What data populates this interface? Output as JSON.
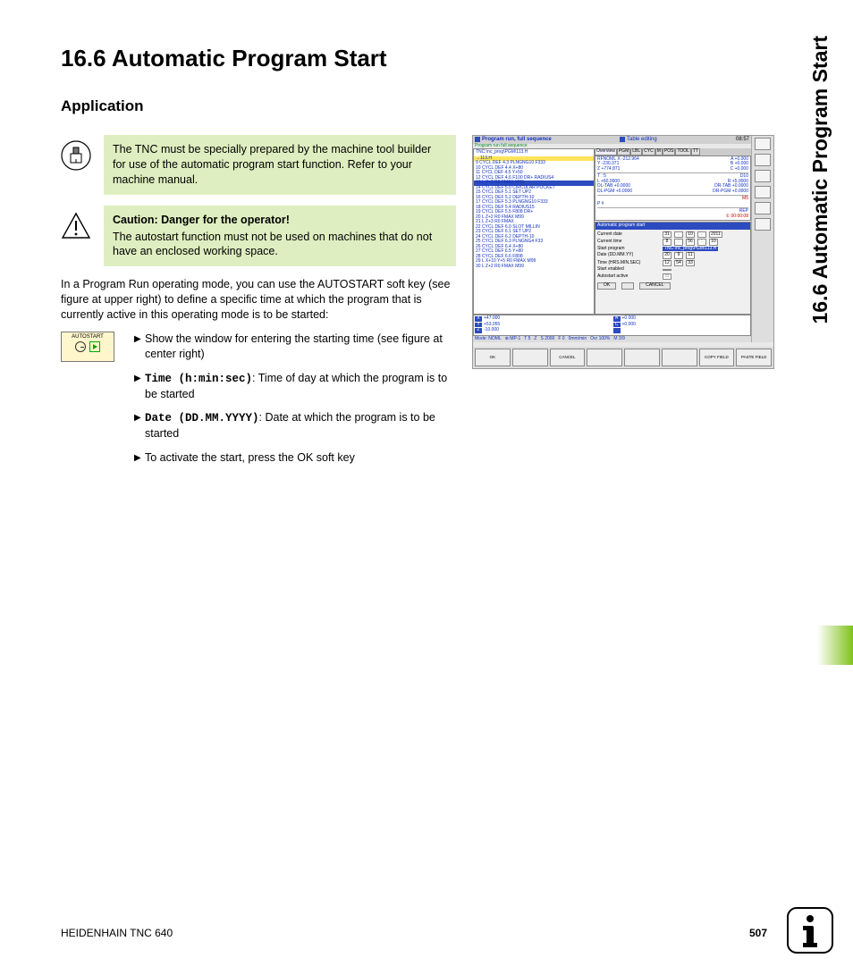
{
  "page": {
    "section_number": "16.6",
    "section_title": "16.6 Automatic Program Start",
    "subsection": "Application",
    "side_title": "16.6 Automatic Program Start",
    "footer_left": "HEIDENHAIN TNC 640",
    "footer_page": "507"
  },
  "notes": {
    "machine": "The TNC must be specially prepared by the machine tool builder for use of the automatic program start function. Refer to your machine manual.",
    "caution_title": "Caution: Danger for the operator!",
    "caution_body": "The autostart function must not be used on machines that do not have an enclosed working space."
  },
  "body": {
    "intro": "In a Program Run operating mode, you can use the AUTOSTART soft key (see figure at upper right) to define a specific time at which the program that is currently active in this operating mode is to be started:",
    "softkey_label": "AUTOSTART",
    "bullets": [
      {
        "pre": "",
        "bold": "",
        "text": "Show the window for entering the starting time (see figure at center right)"
      },
      {
        "pre": "",
        "bold": "Time (h:min:sec)",
        "text": ": Time of day at which the program is to be started"
      },
      {
        "pre": "",
        "bold": "Date (DD.MM.YYYY)",
        "text": ": Date at which the program is to be started"
      },
      {
        "pre": "",
        "bold": "",
        "text": "To activate the start, press the OK soft key"
      }
    ]
  },
  "screenshot": {
    "title_left": "Program run, full sequence",
    "subtitle_left": "Program run full sequence",
    "title_right": "Table editing",
    "clock": "08:57",
    "path": "TNC:\\nc_prog\\PGM\\113.H",
    "code_lines": [
      {
        "t": "→113.H",
        "cls": "hl"
      },
      {
        "t": "9  CYCL DEF 4.3 PLNGNG10 F333",
        "cls": ""
      },
      {
        "t": "10 CYCL DEF 4.4 X+80",
        "cls": ""
      },
      {
        "t": "11 CYCL DEF 4.5 Y+50",
        "cls": ""
      },
      {
        "t": "12 CYCL DEF 4.6 F100 DR+ RADIUS4",
        "cls": ""
      },
      {
        "t": "13 L Z+2 R0 FMAX M99",
        "cls": "sel"
      },
      {
        "t": "14 CYCL DEF 5.0 CIRCULAR POCKET",
        "cls": ""
      },
      {
        "t": "15 CYCL DEF 5.1 SET UP2",
        "cls": ""
      },
      {
        "t": "16 CYCL DEF 5.2 DEPTH-10",
        "cls": ""
      },
      {
        "t": "17 CYCL DEF 5.3 PLNGNG10 F333",
        "cls": ""
      },
      {
        "t": "18 CYCL DEF 5.4 RADIUS15",
        "cls": ""
      },
      {
        "t": "19 CYCL DEF 5.5 F808 DR+",
        "cls": ""
      },
      {
        "t": "20 L Z+2 R0 FMAX M99",
        "cls": ""
      },
      {
        "t": "21 L Z+3 R0 FMAX",
        "cls": ""
      },
      {
        "t": "22 CYCL DEF 6.0 SLOT MILLIN",
        "cls": ""
      },
      {
        "t": "23 CYCL DEF 6.1 SET UP2",
        "cls": ""
      },
      {
        "t": "24 CYCL DEF 6.2 DEPTH-10",
        "cls": ""
      },
      {
        "t": "25 CYCL DEF 6.3 PLNGNG4 F33",
        "cls": ""
      },
      {
        "t": "26 CYCL DEF 6.4 X+80",
        "cls": ""
      },
      {
        "t": "27 CYCL DEF 6.5 Y+80",
        "cls": ""
      },
      {
        "t": "28 CYCL DEF 6.6 F808",
        "cls": ""
      },
      {
        "t": "29 L X+10 Y+5 R0 FMAX M99",
        "cls": ""
      },
      {
        "t": "30 L Z+2 R0 FMAX M99",
        "cls": ""
      }
    ],
    "overview": {
      "tabs": [
        "Overview",
        "PGM",
        "LBL",
        "CYC",
        "M",
        "POS",
        "TOOL",
        "TT"
      ],
      "rows_left": [
        [
          "RFNOML",
          "X",
          "-212.964"
        ],
        [
          "",
          "Y",
          "-230.371"
        ],
        [
          "",
          "Z",
          "+774.871"
        ]
      ],
      "rows_right": [
        [
          "A",
          "+0.000"
        ],
        [
          "B",
          "+0.000"
        ],
        [
          "C",
          "+0.000"
        ]
      ],
      "tool": [
        "T : 5",
        "",
        "D10"
      ],
      "lr": [
        "L  +60.0000",
        "R  +5.0000"
      ],
      "dl": [
        "DL-TAB  +0.0000",
        "DR-TAB  +0.0000"
      ],
      "dp": [
        "DL-PGM  +0.0000",
        "DR-PGM  +0.0000"
      ],
      "m5_label": "M5",
      "p_labels": [
        "P #",
        ""
      ],
      "rep_label": "REP",
      "rep_time": "① 00:00:08"
    },
    "dialog": {
      "title": "Automatic program start",
      "rows": [
        {
          "label": "Current date",
          "fields": [
            "31",
            ".",
            "10",
            ".",
            "2011"
          ]
        },
        {
          "label": "Current time",
          "fields": [
            "8",
            ":",
            "56",
            ":",
            "10"
          ]
        },
        {
          "label": "Start program",
          "value": "TNC:\\nc_prog\\PGM\\113.H",
          "hl": true
        },
        {
          "label": "Date (DD.MM.YY)",
          "fields": [
            "20",
            "9",
            "11"
          ]
        },
        {
          "label": "Time (HRS.MIN.SEC)",
          "fields": [
            "12",
            "54",
            "33"
          ]
        },
        {
          "label": "Start enabled",
          "fields": [
            ""
          ]
        },
        {
          "label": "Autostart active",
          "fields": [
            "□"
          ]
        }
      ],
      "buttons": [
        "OK",
        "",
        "CANCEL"
      ]
    },
    "axes": [
      {
        "ax": "X",
        "v1": "+47.000",
        "mid": "A",
        "v2": "+0.000"
      },
      {
        "ax": "Y",
        "v1": "+53.055",
        "mid": "C",
        "v2": "+0.000"
      },
      {
        "ax": "Z",
        "v1": "-10.000",
        "mid": "",
        "v2": ""
      }
    ],
    "status": [
      "Mode: NOML",
      "⊕:MP-1",
      "T 5",
      "Z",
      "S 2000",
      "F 0",
      "0mm/min",
      "Ovr 100%",
      "M 3/9"
    ],
    "softkeys_bottom": [
      "OK",
      "",
      "CANCEL",
      "",
      "",
      "",
      "COPY FIELD",
      "PASTE FIELD"
    ],
    "side_buttons": 6
  },
  "colors": {
    "note_bg": "#dfeec0",
    "accent_blue": "#2b4bbf",
    "softkey_bg": "#fff6cc",
    "code_hl": "#ffe35a",
    "green_tab": "#7fc21a"
  }
}
